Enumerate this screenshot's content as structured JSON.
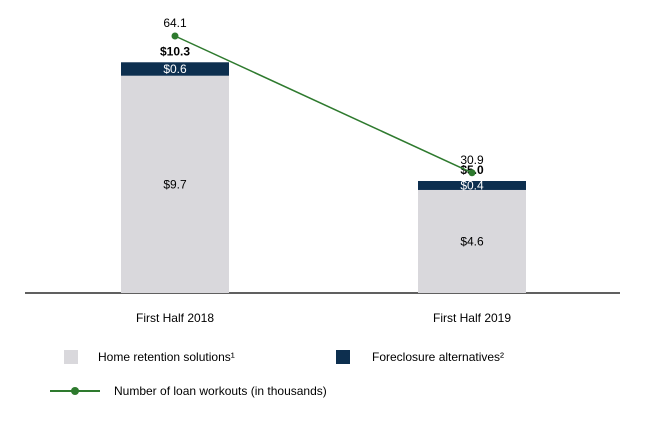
{
  "chart_data": {
    "type": "bar",
    "categories": [
      "First Half 2018",
      "First Half 2019"
    ],
    "series": [
      {
        "name": "Home retention solutions¹",
        "values": [
          9.7,
          4.6
        ],
        "labels": [
          "$9.7",
          "$4.6"
        ],
        "color": "#d9d8dc"
      },
      {
        "name": "Foreclosure alternatives²",
        "values": [
          0.6,
          0.4
        ],
        "labels": [
          "$0.6",
          "$0.4"
        ],
        "color": "#0d2f4f"
      }
    ],
    "totals": [
      10.3,
      5.0
    ],
    "total_labels": [
      "$10.3",
      "$5.0"
    ],
    "line_series": {
      "name": "Number of loan workouts (in thousands)",
      "values": [
        64.1,
        30.9
      ],
      "labels": [
        "64.1",
        "30.9"
      ],
      "color": "#2e7a2e"
    },
    "stacked": true,
    "grid": false,
    "legend_position": "bottom"
  }
}
